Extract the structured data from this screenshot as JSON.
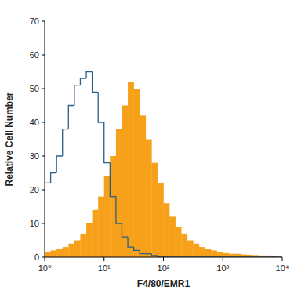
{
  "chart_data": {
    "type": "histogram",
    "x_label": "F4/80/EMR1",
    "y_label": "Relative Cell Number",
    "log": "x",
    "bins": [
      1,
      1.259,
      1.585,
      1.995,
      2.512,
      3.162,
      3.981,
      5.012,
      6.31,
      7.943,
      10,
      12.59,
      15.85,
      19.95,
      25.12,
      31.62,
      39.81,
      50.12,
      63.1,
      79.43,
      100,
      125.9,
      158.5,
      199.5,
      251.2,
      316.2,
      398.1,
      501.2,
      631,
      794.3,
      1000,
      1259,
      1585,
      1995,
      2512,
      3162,
      3981,
      5012,
      6310,
      7943,
      10000
    ],
    "series": [
      {
        "type": "bar",
        "color": "#f7a11a",
        "values": [
          1.5,
          2,
          2.5,
          3,
          4,
          5,
          7,
          10,
          14,
          18,
          24,
          30,
          38,
          45,
          52,
          50,
          42,
          35,
          28,
          22,
          16,
          12,
          9,
          7,
          5,
          4,
          3,
          2.5,
          2,
          1.5,
          1.2,
          1,
          1,
          0.8,
          0.7,
          0.6,
          0.5,
          0.5,
          0.3,
          0
        ]
      },
      {
        "type": "step",
        "color": "#2b5f86",
        "values": [
          22,
          25,
          30,
          38,
          45,
          51,
          53,
          55,
          49,
          40,
          28,
          18,
          10,
          6,
          3,
          2,
          1,
          1,
          0.5,
          0,
          0,
          0,
          0,
          0,
          0,
          0,
          0,
          0,
          0,
          0,
          0,
          0,
          0,
          0,
          0,
          0,
          0,
          0,
          0,
          0
        ]
      }
    ],
    "xlim": [
      1,
      10000
    ],
    "xticks": [
      {
        "value": 1,
        "label": "10⁰"
      },
      {
        "value": 10,
        "label": "10¹"
      },
      {
        "value": 100,
        "label": "10²"
      },
      {
        "value": 1000,
        "label": "10³"
      },
      {
        "value": 10000,
        "label": "10⁴"
      }
    ],
    "ylim": [
      0,
      70
    ],
    "yticks": [
      0,
      10,
      20,
      30,
      40,
      50,
      60,
      70
    ],
    "grid": false
  }
}
